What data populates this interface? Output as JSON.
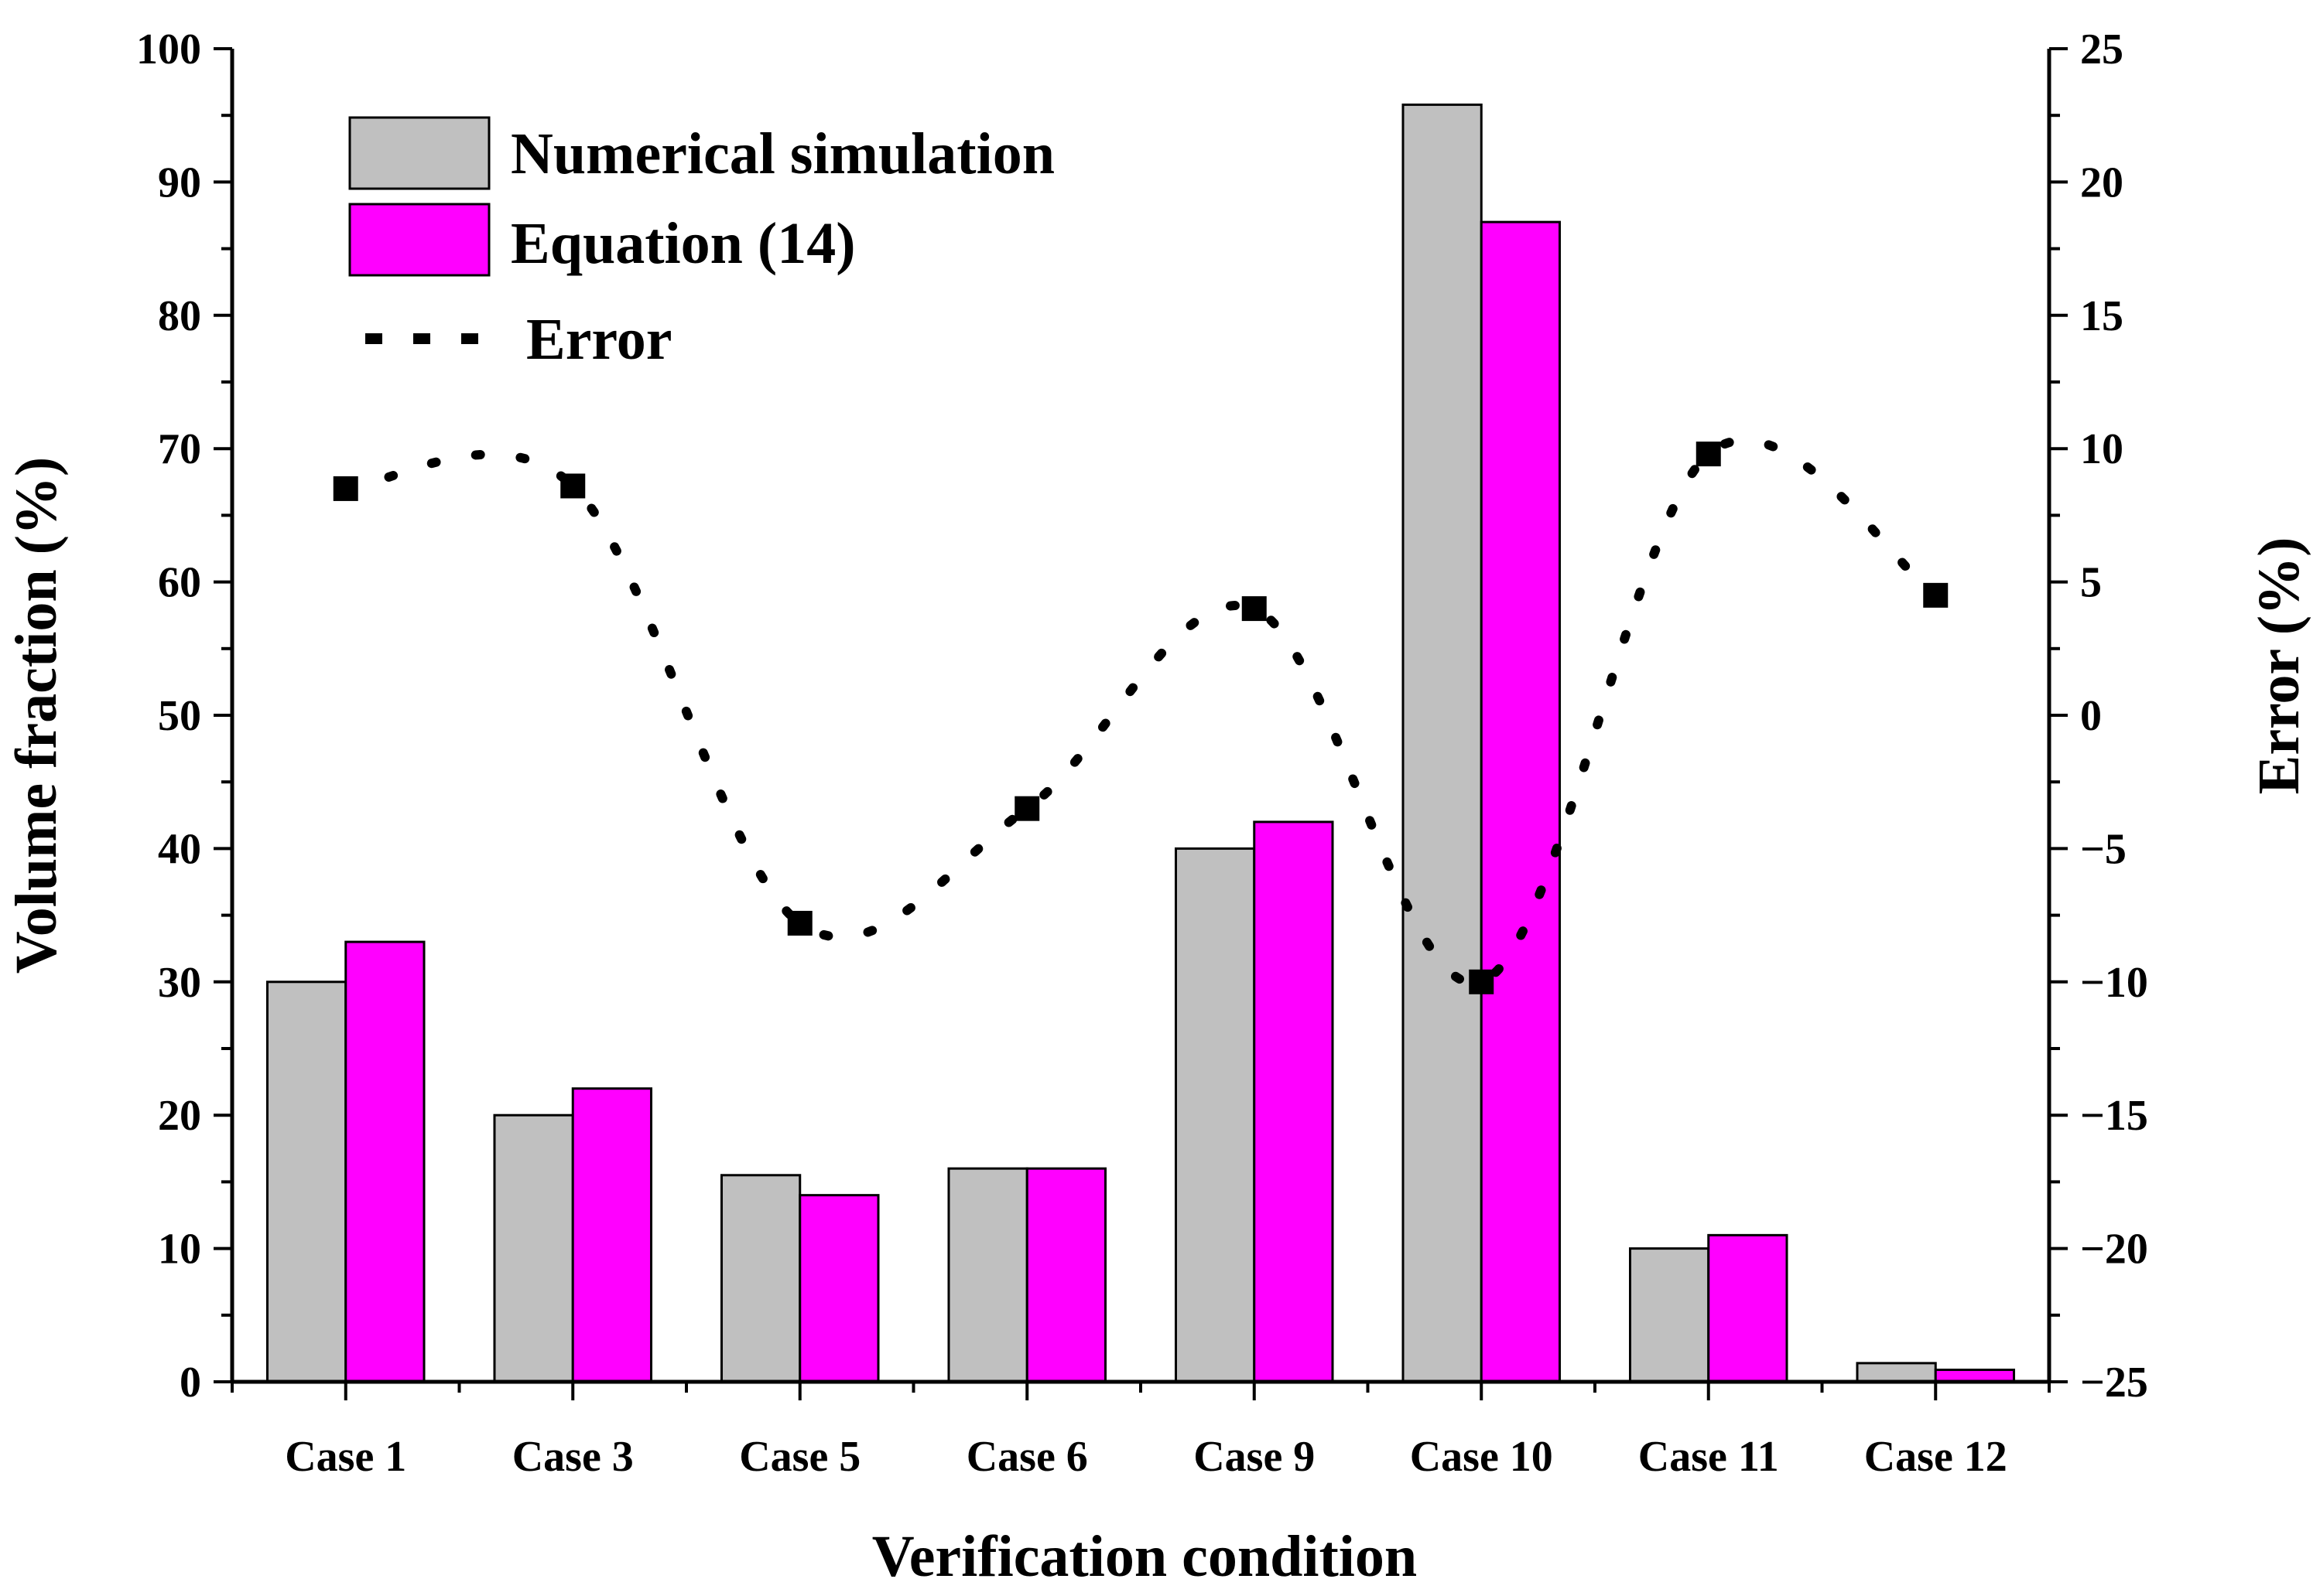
{
  "chart_data": {
    "type": "bar",
    "title": "",
    "xlabel": "Verification condition",
    "ylabel": "Volume fraction (%)",
    "y2label": "Error (%)",
    "ylim": [
      0,
      100
    ],
    "y2lim": [
      -25,
      25
    ],
    "yticks": [
      "0",
      "10",
      "20",
      "30",
      "40",
      "50",
      "60",
      "70",
      "80",
      "90",
      "100"
    ],
    "y2ticks": [
      "25",
      "20",
      "15",
      "10",
      "5",
      "0",
      "−5",
      "−10",
      "−15",
      "−20",
      "−25"
    ],
    "categories": [
      "Case 1",
      "Case 3",
      "Case 5",
      "Case 6",
      "Case 9",
      "Case 10",
      "Case 11",
      "Case 12"
    ],
    "series": [
      {
        "name": "Numerical simulation",
        "type": "bar",
        "axis": "left",
        "color": "#c0c0c0",
        "values": [
          30,
          20,
          15.5,
          16,
          40,
          95.8,
          10,
          1.4
        ]
      },
      {
        "name": "Equation (14)",
        "type": "bar",
        "axis": "left",
        "color": "#ff00ff",
        "values": [
          33,
          22,
          14,
          16,
          42,
          87,
          11,
          0.9
        ]
      },
      {
        "name": "Error",
        "type": "line",
        "axis": "right",
        "color": "#000000",
        "style": "dotted-smooth-with-square-markers",
        "values": [
          8.5,
          8.6,
          -7.8,
          -3.5,
          4,
          -10,
          9.8,
          4.5
        ]
      }
    ],
    "legend": {
      "position": "top-left",
      "entries": [
        "Numerical simulation",
        "Equation (14)",
        "Error"
      ]
    },
    "grid": false
  }
}
